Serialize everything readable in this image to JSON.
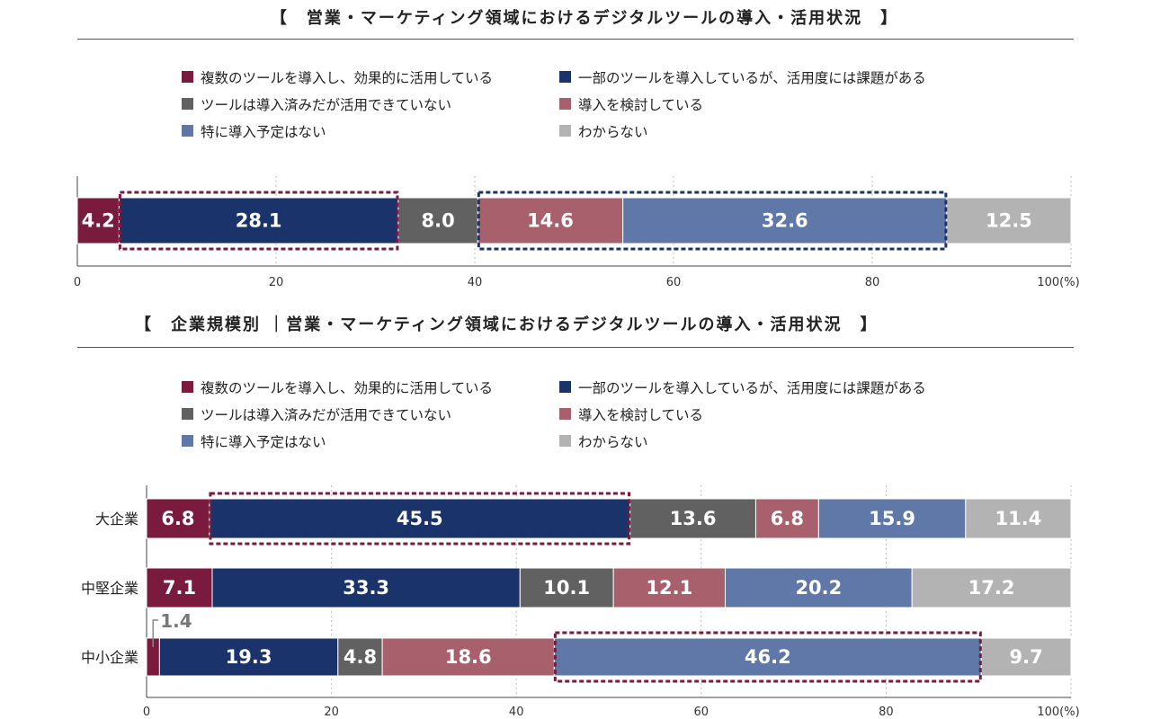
{
  "colors": {
    "c1": "#7a1a3c",
    "c2": "#1a336b",
    "c3": "#616161",
    "c4": "#a8606c",
    "c5": "#5f78a7",
    "c6": "#b3b3b3",
    "grid": "#bdbdbd",
    "highlight_blue": "#1a336b",
    "highlight_maroon": "#7a1a3c"
  },
  "legend": [
    {
      "label": "複数のツールを導入し、効果的に活用している",
      "color": "#7a1a3c"
    },
    {
      "label": "一部のツールを導入しているが、活用度には課題がある",
      "color": "#1a336b"
    },
    {
      "label": "ツールは導入済みだが活用できていない",
      "color": "#616161"
    },
    {
      "label": "導入を検討している",
      "color": "#a8606c"
    },
    {
      "label": "特に導入予定はない",
      "color": "#5f78a7"
    },
    {
      "label": "わからない",
      "color": "#b3b3b3"
    }
  ],
  "chart_data": [
    {
      "type": "bar",
      "orientation": "horizontal",
      "stacked": "percent",
      "title": "【　営業・マーケティング領域におけるデジタルツールの導入・活用状況　】",
      "categories": [
        ""
      ],
      "series": [
        {
          "name": "複数のツールを導入し、効果的に活用している",
          "values": [
            4.2
          ]
        },
        {
          "name": "一部のツールを導入しているが、活用度には課題がある",
          "values": [
            28.1
          ]
        },
        {
          "name": "ツールは導入済みだが活用できていない",
          "values": [
            8.0
          ]
        },
        {
          "name": "導入を検討している",
          "values": [
            14.6
          ]
        },
        {
          "name": "特に導入予定はない",
          "values": [
            32.6
          ]
        },
        {
          "name": "わからない",
          "values": [
            12.5
          ]
        }
      ],
      "value_labels": [
        [
          "4.2",
          "28.1",
          "8.0",
          "14.6",
          "32.6",
          "12.5"
        ]
      ],
      "xlim": [
        0,
        100
      ],
      "xticks": [
        "0",
        "20",
        "40",
        "60",
        "80",
        "100(%)"
      ],
      "grid": true,
      "highlights": [
        {
          "category_index": 0,
          "series_index": [
            1,
            1
          ],
          "style": "dashed",
          "color": "maroon"
        },
        {
          "category_index": 0,
          "series_index": [
            3,
            4
          ],
          "style": "dashed",
          "color": "blue"
        }
      ]
    },
    {
      "type": "bar",
      "orientation": "horizontal",
      "stacked": "percent",
      "title": "【　企業規模別 ｜営業・マーケティング領域におけるデジタルツールの導入・活用状況　】",
      "categories": [
        "大企業",
        "中堅企業",
        "中小企業"
      ],
      "series": [
        {
          "name": "複数のツールを導入し、効果的に活用している",
          "values": [
            6.8,
            7.1,
            1.4
          ]
        },
        {
          "name": "一部のツールを導入しているが、活用度には課題がある",
          "values": [
            45.5,
            33.3,
            19.3
          ]
        },
        {
          "name": "ツールは導入済みだが活用できていない",
          "values": [
            13.6,
            10.1,
            4.8
          ]
        },
        {
          "name": "導入を検討している",
          "values": [
            6.8,
            12.1,
            18.6
          ]
        },
        {
          "name": "特に導入予定はない",
          "values": [
            15.9,
            20.2,
            46.2
          ]
        },
        {
          "name": "わからない",
          "values": [
            11.4,
            17.2,
            9.7
          ]
        }
      ],
      "value_labels": [
        [
          "6.8",
          "45.5",
          "13.6",
          "6.8",
          "15.9",
          "11.4"
        ],
        [
          "7.1",
          "33.3",
          "10.1",
          "12.1",
          "20.2",
          "17.2"
        ],
        [
          "1.4",
          "19.3",
          "4.8",
          "18.6",
          "46.2",
          "9.7"
        ]
      ],
      "callouts": [
        {
          "category_index": 2,
          "series_index": 0,
          "label": "1.4"
        }
      ],
      "xlim": [
        0,
        100
      ],
      "xticks": [
        "0",
        "20",
        "40",
        "60",
        "80",
        "100(%)"
      ],
      "grid": true,
      "highlights": [
        {
          "category_index": 0,
          "series_index": [
            1,
            1
          ],
          "style": "dashed",
          "color": "maroon"
        },
        {
          "category_index": 2,
          "series_index": [
            4,
            4
          ],
          "style": "dashed",
          "color": "maroon"
        }
      ]
    }
  ]
}
